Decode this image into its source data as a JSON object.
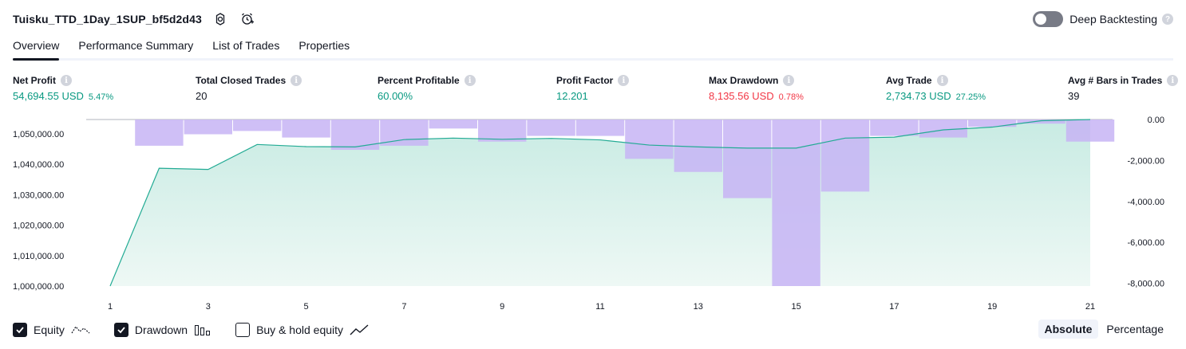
{
  "header": {
    "strategy_name": "Tuisku_TTD_1Day_1SUP_bf5d2d43",
    "settings_icon": "gear-icon",
    "alert_icon": "add-alert-icon",
    "deep_backtesting_label": "Deep Backtesting",
    "deep_backtesting_enabled": false
  },
  "tabs": [
    {
      "label": "Overview",
      "active": true
    },
    {
      "label": "Performance Summary",
      "active": false
    },
    {
      "label": "List of Trades",
      "active": false
    },
    {
      "label": "Properties",
      "active": false
    }
  ],
  "stats": [
    {
      "title": "Net Profit",
      "value": "54,694.55 USD",
      "pct": "5.47%",
      "color": "green"
    },
    {
      "title": "Total Closed Trades",
      "value": "20",
      "pct": "",
      "color": "dark"
    },
    {
      "title": "Percent Profitable",
      "value": "60.00%",
      "pct": "",
      "color": "green"
    },
    {
      "title": "Profit Factor",
      "value": "12.201",
      "pct": "",
      "color": "green"
    },
    {
      "title": "Max Drawdown",
      "value": "8,135.56 USD",
      "pct": "0.78%",
      "color": "red"
    },
    {
      "title": "Avg Trade",
      "value": "2,734.73 USD",
      "pct": "27.25%",
      "color": "green"
    },
    {
      "title": "Avg # Bars in Trades",
      "value": "39",
      "pct": "",
      "color": "dark"
    }
  ],
  "chart_data": {
    "type": "area",
    "x": [
      1,
      2,
      3,
      4,
      5,
      6,
      7,
      8,
      9,
      10,
      11,
      12,
      13,
      14,
      15,
      16,
      17,
      18,
      19,
      20,
      21
    ],
    "x_tick_labels": [
      "1",
      "3",
      "5",
      "7",
      "9",
      "11",
      "13",
      "15",
      "17",
      "19",
      "21"
    ],
    "series": [
      {
        "name": "Equity",
        "axis": "left",
        "values": [
          1000000,
          1038700,
          1038300,
          1046500,
          1045800,
          1045700,
          1048100,
          1048600,
          1048200,
          1048500,
          1048000,
          1046300,
          1045700,
          1045300,
          1045300,
          1048600,
          1048900,
          1051300,
          1052200,
          1054300,
          1054695
        ]
      },
      {
        "name": "Drawdown",
        "axis": "right",
        "type": "bar",
        "values": [
          0,
          -1280,
          -720,
          -560,
          -880,
          -1480,
          -1280,
          -440,
          -1080,
          -800,
          -800,
          -1920,
          -2560,
          -3840,
          -8136,
          -3520,
          -800,
          -880,
          -360,
          -200,
          -1080
        ]
      }
    ],
    "left_axis_ticks": [
      "1,000,000.00",
      "1,010,000.00",
      "1,020,000.00",
      "1,030,000.00",
      "1,040,000.00",
      "1,050,000.00"
    ],
    "left_ylim": [
      1000000,
      1054695
    ],
    "right_axis_ticks": [
      "0.00",
      "-2,000.00",
      "-4,000.00",
      "-6,000.00",
      "-8,000.00"
    ],
    "right_ylim": [
      -8136,
      0
    ],
    "colors": {
      "equity_line": "#22ab94",
      "equity_fill": "#c8ebe3",
      "drawdown_bar": "#c7b4f5",
      "grid": "#e0e3eb"
    }
  },
  "legend": [
    {
      "label": "Equity",
      "checked": true,
      "icon": "equity-line-icon"
    },
    {
      "label": "Drawdown",
      "checked": true,
      "icon": "drawdown-bars-icon"
    },
    {
      "label": "Buy & hold equity",
      "checked": false,
      "icon": "buy-hold-line-icon"
    }
  ],
  "mode": {
    "absolute_label": "Absolute",
    "percentage_label": "Percentage",
    "selected": "Absolute"
  }
}
